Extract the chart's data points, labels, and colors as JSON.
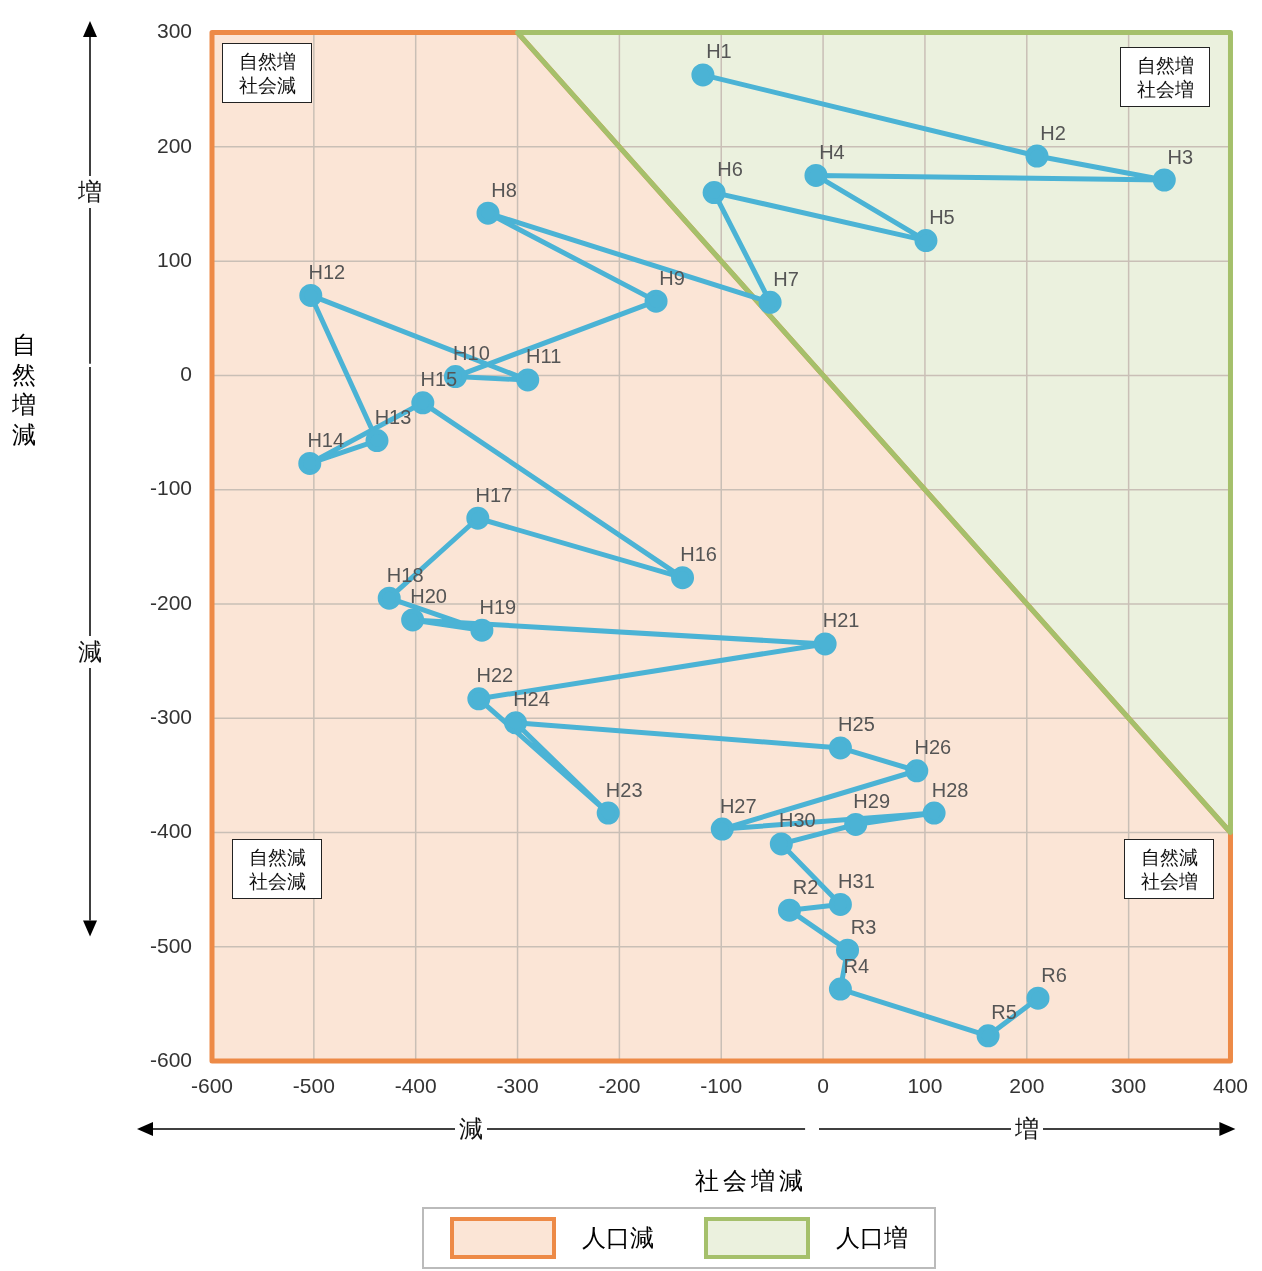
{
  "chart_data": {
    "type": "line",
    "xlabel": "社会増減",
    "ylabel": "自然増減",
    "xlim": [
      -600,
      400
    ],
    "ylim": [
      -600,
      300
    ],
    "xticks": [
      -600,
      -500,
      -400,
      -300,
      -200,
      -100,
      0,
      100,
      200,
      300,
      400
    ],
    "yticks": [
      -600,
      -500,
      -400,
      -300,
      -200,
      -100,
      0,
      100,
      200,
      300
    ],
    "grid": true,
    "legend": "bottom",
    "line_style": "solid",
    "series": [
      {
        "name": "人口減",
        "type": "area",
        "color": "#fbe5d6",
        "x": [
          -600,
          -300,
          400,
          400,
          -600
        ],
        "values": [
          300,
          300,
          -400,
          -600,
          -600
        ]
      },
      {
        "name": "人口増",
        "type": "area",
        "color": "#ebf1de",
        "x": [
          -300,
          400,
          400
        ],
        "values": [
          300,
          -400,
          300
        ]
      },
      {
        "color": "#4bb3d5",
        "marker": "circle",
        "x": [
          -118,
          210,
          335,
          -7,
          101,
          -107,
          -52,
          -329,
          -164,
          -361,
          -290,
          -503,
          -438,
          -504,
          -393,
          -138,
          -339,
          -426,
          -335,
          -403,
          2,
          -338,
          -211,
          -302,
          17,
          92,
          -99,
          109,
          32,
          -41,
          17,
          -33,
          24,
          17,
          162,
          211
        ],
        "values": [
          263,
          192,
          171,
          175,
          118,
          160,
          64,
          142,
          65,
          -1,
          -4,
          70,
          -57,
          -77,
          -24,
          -177,
          -125,
          -195,
          -223,
          -214,
          -235,
          -283,
          -383,
          -304,
          -326,
          -346,
          -397,
          -383,
          -393,
          -410,
          -463,
          -468,
          -503,
          -537,
          -578,
          -545
        ]
      }
    ],
    "annotations": [
      "自然増社会減",
      "自然増社会増",
      "自然減社会減",
      "自然減社会増",
      "増",
      "減",
      "減",
      "増",
      {
        "text": "H1",
        "x": -118,
        "y": 263
      },
      {
        "text": "H2",
        "x": 210,
        "y": 192
      },
      {
        "text": "H3",
        "x": 335,
        "y": 171
      },
      {
        "text": "H4",
        "x": -7,
        "y": 175
      },
      {
        "text": "H5",
        "x": 101,
        "y": 118
      },
      {
        "text": "H6",
        "x": -107,
        "y": 160
      },
      {
        "text": "H7",
        "x": -52,
        "y": 64
      },
      {
        "text": "H8",
        "x": -329,
        "y": 142
      },
      {
        "text": "H9",
        "x": -164,
        "y": 65
      },
      {
        "text": "H10",
        "x": -361,
        "y": -1
      },
      {
        "text": "H11",
        "x": -290,
        "y": -4
      },
      {
        "text": "H12",
        "x": -503,
        "y": 70
      },
      {
        "text": "H13",
        "x": -438,
        "y": -57
      },
      {
        "text": "H14",
        "x": -504,
        "y": -77
      },
      {
        "text": "H15",
        "x": -393,
        "y": -24
      },
      {
        "text": "H16",
        "x": -138,
        "y": -177
      },
      {
        "text": "H17",
        "x": -339,
        "y": -125
      },
      {
        "text": "H18",
        "x": -426,
        "y": -195
      },
      {
        "text": "H19",
        "x": -335,
        "y": -223
      },
      {
        "text": "H20",
        "x": -403,
        "y": -214
      },
      {
        "text": "H21",
        "x": 2,
        "y": -235
      },
      {
        "text": "H22",
        "x": -338,
        "y": -283
      },
      {
        "text": "H23",
        "x": -211,
        "y": -383
      },
      {
        "text": "H24",
        "x": -302,
        "y": -304
      },
      {
        "text": "H25",
        "x": 17,
        "y": -326
      },
      {
        "text": "H26",
        "x": 92,
        "y": -346
      },
      {
        "text": "H27",
        "x": -99,
        "y": -397
      },
      {
        "text": "H28",
        "x": 109,
        "y": -383
      },
      {
        "text": "H29",
        "x": 32,
        "y": -393
      },
      {
        "text": "H30",
        "x": -41,
        "y": -410
      },
      {
        "text": "H31",
        "x": 17,
        "y": -463
      },
      {
        "text": "R2",
        "x": -33,
        "y": -468
      },
      {
        "text": "R3",
        "x": 24,
        "y": -503
      },
      {
        "text": "R4",
        "x": 17,
        "y": -537
      },
      {
        "text": "R5",
        "x": 162,
        "y": -578
      },
      {
        "text": "R6",
        "x": 211,
        "y": -545
      }
    ]
  }
}
